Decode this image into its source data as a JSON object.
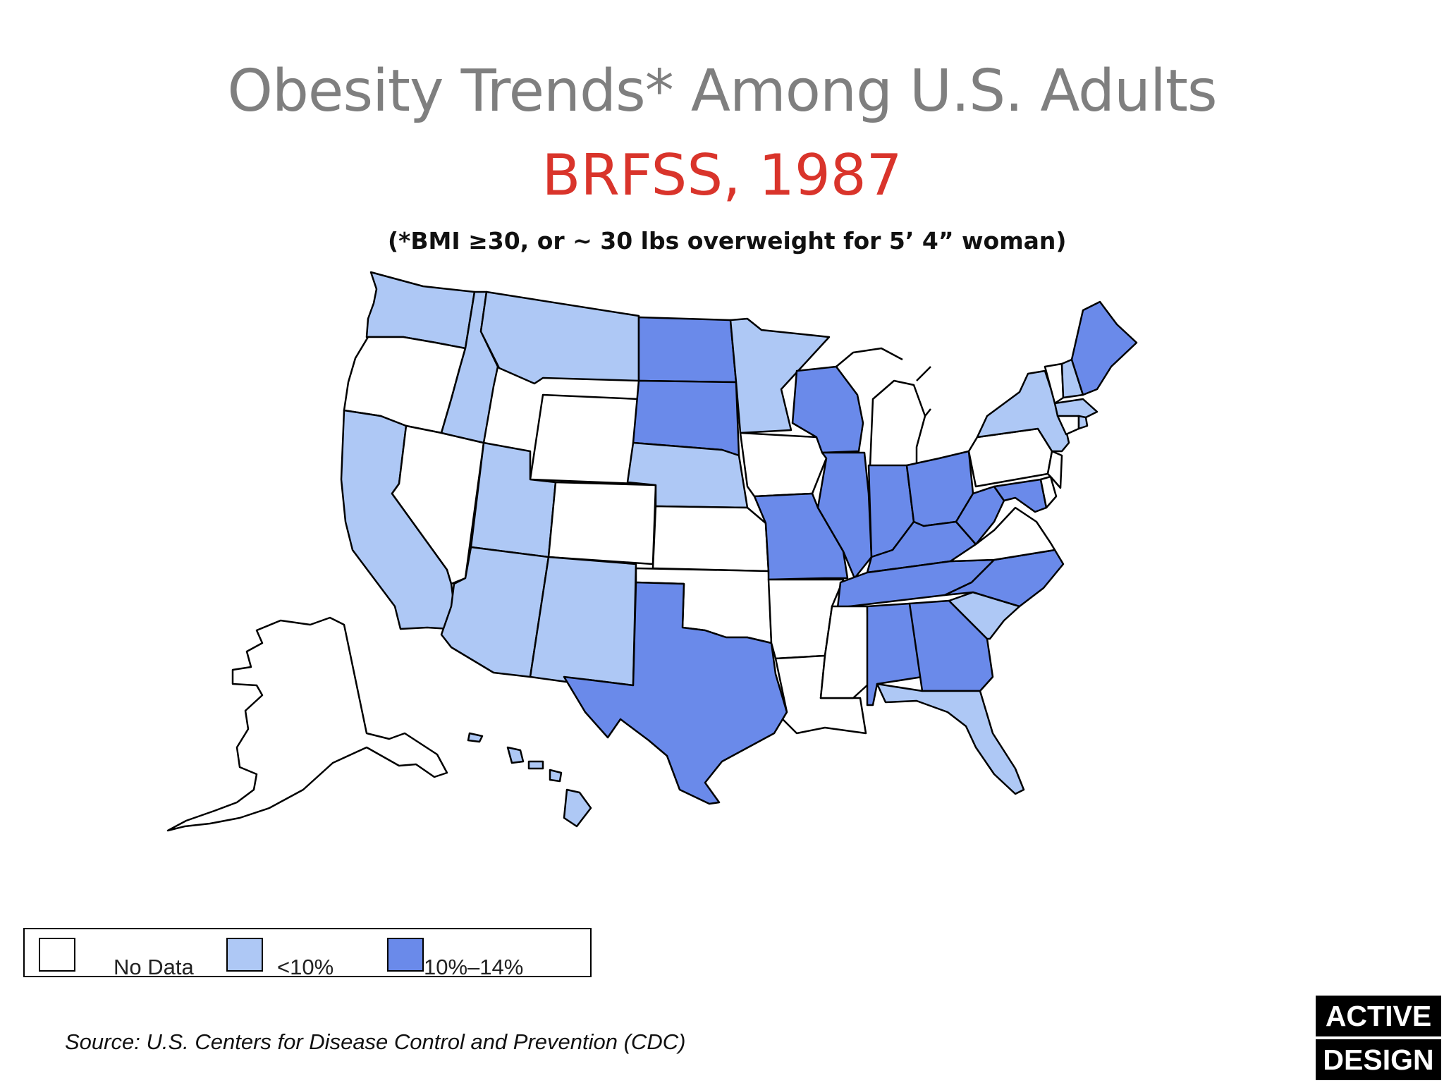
{
  "header": {
    "title": "Obesity Trends* Among U.S. Adults",
    "subtitle": "BRFSS, 1987",
    "note": "(*BMI ≥30, or ~ 30 lbs overweight for 5’ 4” woman)"
  },
  "colors": {
    "no_data": "#ffffff",
    "lt10": "#aec8f5",
    "r10_14": "#6a8aea",
    "border": "#000000",
    "subtitle": "#d9342b"
  },
  "legend": {
    "items": [
      {
        "label": "No Data",
        "category": "no_data"
      },
      {
        "label": "<10%",
        "category": "lt10"
      },
      {
        "label": "10%–14%",
        "category": "r10_14"
      }
    ]
  },
  "map_data": {
    "year": 1987,
    "states": {
      "WA": "lt10",
      "OR": "no_data",
      "CA": "lt10",
      "NV": "no_data",
      "ID": "lt10",
      "MT": "lt10",
      "WY": "no_data",
      "UT": "lt10",
      "AZ": "lt10",
      "CO": "no_data",
      "NM": "lt10",
      "ND": "r10_14",
      "SD": "r10_14",
      "NE": "lt10",
      "KS": "no_data",
      "OK": "no_data",
      "TX": "r10_14",
      "MN": "lt10",
      "IA": "no_data",
      "MO": "r10_14",
      "AR": "no_data",
      "LA": "no_data",
      "WI": "r10_14",
      "IL": "r10_14",
      "MI": "no_data",
      "IN": "r10_14",
      "OH": "r10_14",
      "KY": "r10_14",
      "TN": "r10_14",
      "MS": "no_data",
      "AL": "r10_14",
      "GA": "r10_14",
      "FL": "lt10",
      "SC": "lt10",
      "NC": "r10_14",
      "VA": "no_data",
      "WV": "r10_14",
      "MD": "r10_14",
      "DE": "no_data",
      "PA": "no_data",
      "NJ": "no_data",
      "NY": "lt10",
      "CT": "no_data",
      "RI": "lt10",
      "MA": "lt10",
      "VT": "no_data",
      "NH": "lt10",
      "ME": "r10_14",
      "AK": "no_data",
      "HI": "lt10"
    }
  },
  "source": "Source: U.S. Centers for Disease Control and Prevention (CDC)",
  "logo": {
    "line1": "ACTIVE",
    "line2": "DESIGN"
  }
}
